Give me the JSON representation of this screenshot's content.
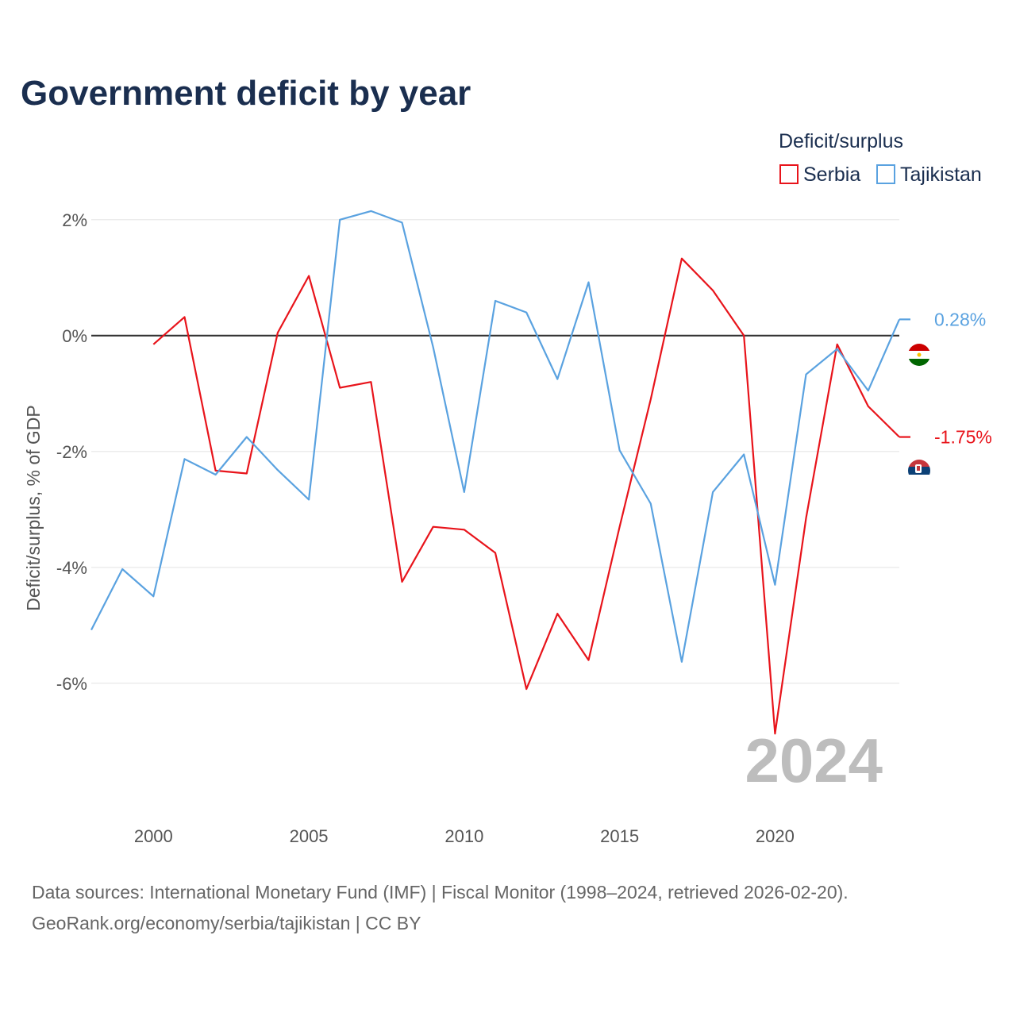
{
  "title": "Government deficit by year",
  "legend": {
    "title": "Deficit/surplus",
    "items": [
      {
        "label": "Serbia",
        "color": "#e8141b"
      },
      {
        "label": "Tajikistan",
        "color": "#5aa2e0"
      }
    ]
  },
  "year_watermark": "2024",
  "source_line1": "Data sources: International Monetary Fund (IMF) | Fiscal Monitor (1998–2024, retrieved 2026-02-20).",
  "source_line2": "GeoRank.org/economy/serbia/tajikistan | CC BY",
  "chart_data": {
    "type": "line",
    "title": "Government deficit by year",
    "xlabel": "",
    "ylabel": "Deficit/surplus, % of GDP",
    "xlim": [
      1998,
      2024
    ],
    "ylim": [
      -7.4,
      2.6
    ],
    "x_ticks": [
      2000,
      2005,
      2010,
      2015,
      2020
    ],
    "x_tick_labels": [
      "2000",
      "2005",
      "2010",
      "2015",
      "2020"
    ],
    "y_ticks": [
      2,
      0,
      -2,
      -4,
      -6
    ],
    "y_tick_labels": [
      "2%",
      "0%",
      "-2%",
      "-4%",
      "-6%"
    ],
    "zero_line": true,
    "grid": true,
    "legend_position": "top-right",
    "series": [
      {
        "name": "Serbia",
        "color": "#e8141b",
        "end_label": "-1.75%",
        "flag": "serbia-flag",
        "x": [
          2000,
          2001,
          2002,
          2003,
          2004,
          2005,
          2006,
          2007,
          2008,
          2009,
          2010,
          2011,
          2012,
          2013,
          2014,
          2015,
          2016,
          2017,
          2018,
          2019,
          2020,
          2021,
          2022,
          2023,
          2024
        ],
        "values": [
          -0.15,
          0.32,
          -2.33,
          -2.38,
          0.05,
          1.03,
          -0.9,
          -0.8,
          -4.25,
          -3.3,
          -3.35,
          -3.75,
          -6.1,
          -4.8,
          -5.6,
          -3.3,
          -1.1,
          1.33,
          0.78,
          0.0,
          -6.87,
          -3.15,
          -0.15,
          -1.22,
          -1.75
        ]
      },
      {
        "name": "Tajikistan",
        "color": "#5aa2e0",
        "end_label": "0.28%",
        "flag": "tajikistan-flag",
        "x": [
          1998,
          1999,
          2000,
          2001,
          2002,
          2003,
          2004,
          2005,
          2006,
          2007,
          2008,
          2009,
          2010,
          2011,
          2012,
          2013,
          2014,
          2015,
          2016,
          2017,
          2018,
          2019,
          2020,
          2021,
          2022,
          2023,
          2024
        ],
        "values": [
          -5.08,
          -4.03,
          -4.5,
          -2.13,
          -2.4,
          -1.75,
          -2.32,
          -2.83,
          2.0,
          2.15,
          1.95,
          -0.2,
          -2.7,
          0.6,
          0.4,
          -0.75,
          0.92,
          -1.98,
          -2.9,
          -5.63,
          -2.7,
          -2.05,
          -4.3,
          -0.67,
          -0.23,
          -0.95,
          0.28
        ]
      }
    ]
  }
}
